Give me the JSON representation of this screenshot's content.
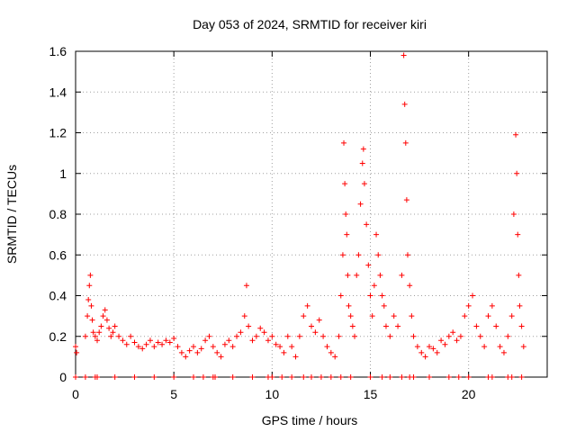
{
  "chart_data": {
    "type": "scatter",
    "title": "Day 053 of 2024, SRMTID for receiver kiri",
    "xlabel": "GPS time / hours",
    "ylabel": "SRMTID / TECUs",
    "xlim": [
      0,
      24
    ],
    "ylim": [
      0,
      1.6
    ],
    "xticks": [
      0,
      5,
      10,
      15,
      20
    ],
    "xtick_labels": [
      "0",
      "5",
      "10",
      "15",
      "20"
    ],
    "yticks": [
      0,
      0.2,
      0.4,
      0.6,
      0.8,
      1.0,
      1.2,
      1.4,
      1.6
    ],
    "ytick_labels": [
      "0",
      "0.2",
      "0.4",
      "0.6",
      "0.8",
      "1",
      "1.2",
      "1.4",
      "1.6"
    ],
    "grid": true,
    "marker": "+",
    "color": "#ff0000",
    "series": [
      {
        "name": "SRMTID",
        "x": [
          0.0,
          0.05,
          0.5,
          0.6,
          0.65,
          0.7,
          0.75,
          0.8,
          0.85,
          0.9,
          1.0,
          1.1,
          1.2,
          1.3,
          1.4,
          1.5,
          1.6,
          1.7,
          1.8,
          1.9,
          2.0,
          2.2,
          2.4,
          2.6,
          2.8,
          3.0,
          3.2,
          3.4,
          3.6,
          3.8,
          4.0,
          4.2,
          4.4,
          4.6,
          4.8,
          5.0,
          5.2,
          5.4,
          5.6,
          5.8,
          6.0,
          6.2,
          6.4,
          6.6,
          6.8,
          7.0,
          7.2,
          7.4,
          7.6,
          7.8,
          8.0,
          8.2,
          8.4,
          8.6,
          8.7,
          8.8,
          9.0,
          9.2,
          9.4,
          9.6,
          9.8,
          10.0,
          10.2,
          10.4,
          10.6,
          10.8,
          11.0,
          11.2,
          11.4,
          11.6,
          11.8,
          12.0,
          12.2,
          12.4,
          12.6,
          12.8,
          13.0,
          13.2,
          13.4,
          13.5,
          13.6,
          13.65,
          13.7,
          13.75,
          13.8,
          13.85,
          13.9,
          14.0,
          14.1,
          14.2,
          14.3,
          14.4,
          14.5,
          14.6,
          14.65,
          14.7,
          14.8,
          14.9,
          15.0,
          15.1,
          15.2,
          15.3,
          15.4,
          15.5,
          15.6,
          15.7,
          15.8,
          16.0,
          16.2,
          16.4,
          16.6,
          16.7,
          16.75,
          16.8,
          16.85,
          16.9,
          17.0,
          17.1,
          17.2,
          17.4,
          17.6,
          17.8,
          18.0,
          18.2,
          18.4,
          18.6,
          18.8,
          19.0,
          19.2,
          19.4,
          19.6,
          19.8,
          20.0,
          20.2,
          20.4,
          20.6,
          20.8,
          21.0,
          21.2,
          21.4,
          21.6,
          21.8,
          22.0,
          22.2,
          22.3,
          22.4,
          22.45,
          22.5,
          22.55,
          22.6,
          22.7,
          22.8,
          0.0,
          0.5,
          1.0,
          1.1,
          2.0,
          3.0,
          4.0,
          5.0,
          6.0,
          6.5,
          7.0,
          7.1,
          8.0,
          9.0,
          9.8,
          10.0,
          10.5,
          11.0,
          11.6,
          12.0,
          12.5,
          13.0,
          13.5,
          14.0,
          15.0,
          15.6,
          16.0,
          16.6,
          17.0,
          17.2,
          18.0,
          19.0,
          19.5,
          20.0,
          21.0,
          21.2,
          22.0,
          22.2,
          22.7
        ],
        "y": [
          0.15,
          0.12,
          0.2,
          0.3,
          0.38,
          0.45,
          0.5,
          0.35,
          0.28,
          0.22,
          0.2,
          0.18,
          0.22,
          0.25,
          0.3,
          0.33,
          0.28,
          0.24,
          0.2,
          0.22,
          0.25,
          0.2,
          0.18,
          0.16,
          0.2,
          0.17,
          0.15,
          0.14,
          0.16,
          0.18,
          0.15,
          0.17,
          0.16,
          0.18,
          0.17,
          0.19,
          0.15,
          0.12,
          0.1,
          0.13,
          0.15,
          0.12,
          0.14,
          0.18,
          0.2,
          0.15,
          0.12,
          0.1,
          0.16,
          0.18,
          0.15,
          0.2,
          0.22,
          0.3,
          0.45,
          0.25,
          0.18,
          0.2,
          0.24,
          0.22,
          0.18,
          0.2,
          0.16,
          0.15,
          0.12,
          0.2,
          0.15,
          0.1,
          0.2,
          0.3,
          0.35,
          0.25,
          0.22,
          0.28,
          0.2,
          0.15,
          0.12,
          0.1,
          0.2,
          0.4,
          0.6,
          1.15,
          0.95,
          0.8,
          0.7,
          0.5,
          0.35,
          0.3,
          0.25,
          0.2,
          0.5,
          0.6,
          0.85,
          1.05,
          1.12,
          0.95,
          0.75,
          0.55,
          0.4,
          0.3,
          0.45,
          0.7,
          0.6,
          0.5,
          0.4,
          0.35,
          0.25,
          0.2,
          0.3,
          0.25,
          0.5,
          1.58,
          1.34,
          1.15,
          0.87,
          0.6,
          0.45,
          0.3,
          0.2,
          0.15,
          0.12,
          0.1,
          0.15,
          0.14,
          0.12,
          0.18,
          0.16,
          0.2,
          0.22,
          0.18,
          0.2,
          0.3,
          0.35,
          0.4,
          0.25,
          0.2,
          0.15,
          0.3,
          0.35,
          0.25,
          0.15,
          0.12,
          0.2,
          0.3,
          0.8,
          1.19,
          1.0,
          0.7,
          0.5,
          0.35,
          0.25,
          0.15,
          0.0,
          0.0,
          0.0,
          0.0,
          0.0,
          0.0,
          0.0,
          0.0,
          0.0,
          0.0,
          0.0,
          0.0,
          0.0,
          0.0,
          0.0,
          0.0,
          0.0,
          0.0,
          0.0,
          0.0,
          0.0,
          0.0,
          0.0,
          0.0,
          0.0,
          0.0,
          0.0,
          0.0,
          0.0,
          0.0,
          0.0,
          0.0,
          0.0,
          0.0,
          0.0,
          0.0,
          0.0,
          0.0,
          0.0
        ]
      }
    ]
  }
}
